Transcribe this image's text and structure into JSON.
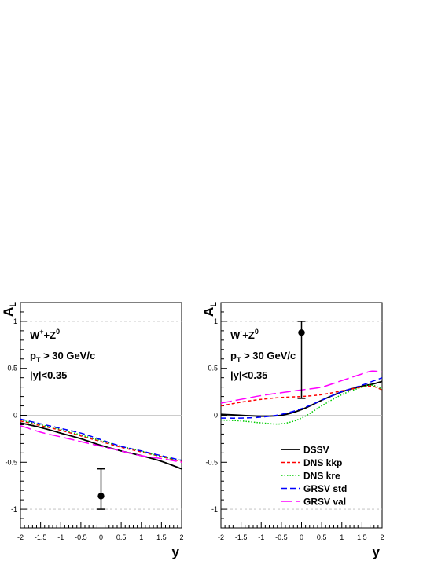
{
  "colors": {
    "DSSV": "#000000",
    "DNS kkp": "#ff0000",
    "DNS kre": "#00cc00",
    "GRSV std": "#0000ff",
    "GRSV val": "#ff00ff"
  },
  "chart_data": [
    {
      "type": "line",
      "panel": "left",
      "ylabel_main": "A",
      "ylabel_sub": "L",
      "xlabel": "y",
      "xlim": [
        -2,
        2
      ],
      "ylim": [
        -1.2,
        1.2
      ],
      "xticks": [
        "-2",
        "-1.5",
        "-1",
        "-0.5",
        "0",
        "0.5",
        "1",
        "1.5",
        "2"
      ],
      "yticks": [
        "-1",
        "-0.5",
        "0",
        "0.5",
        "1"
      ],
      "grid": "dashed horizontal at ±1",
      "annotations": {
        "line1_main": "W",
        "line1_sup1": "+",
        "line1_mid": "+Z",
        "line1_sup2": "0",
        "line2_main": "p",
        "line2_sub": "T",
        "line2_rest": " > 30 GeV/c",
        "line3": "|y|<0.35"
      },
      "x": [
        -2,
        -1.5,
        -1,
        -0.5,
        0,
        0.5,
        1,
        1.5,
        2
      ],
      "series": [
        {
          "name": "DSSV",
          "y": [
            -0.08,
            -0.13,
            -0.19,
            -0.25,
            -0.32,
            -0.38,
            -0.43,
            -0.49,
            -0.57
          ]
        },
        {
          "name": "DNS kkp",
          "y": [
            -0.06,
            -0.11,
            -0.16,
            -0.22,
            -0.28,
            -0.34,
            -0.39,
            -0.44,
            -0.49
          ]
        },
        {
          "name": "DNS kre",
          "y": [
            -0.05,
            -0.1,
            -0.15,
            -0.21,
            -0.27,
            -0.33,
            -0.38,
            -0.44,
            -0.48
          ]
        },
        {
          "name": "GRSV std",
          "y": [
            -0.04,
            -0.09,
            -0.14,
            -0.19,
            -0.26,
            -0.33,
            -0.38,
            -0.43,
            -0.48
          ]
        },
        {
          "name": "GRSV val",
          "y": [
            -0.11,
            -0.18,
            -0.23,
            -0.28,
            -0.33,
            -0.38,
            -0.43,
            -0.46,
            -0.5
          ]
        }
      ],
      "data_point": {
        "x": 0,
        "y": -0.86,
        "y_low": -1.0,
        "y_high": -0.57
      }
    },
    {
      "type": "line",
      "panel": "right",
      "ylabel_main": "A",
      "ylabel_sub": "L",
      "xlabel": "y",
      "xlim": [
        -2,
        2
      ],
      "ylim": [
        -1.2,
        1.2
      ],
      "xticks": [
        "-2",
        "-1.5",
        "-1",
        "-0.5",
        "0",
        "0.5",
        "1",
        "1.5",
        "2"
      ],
      "yticks": [
        "-1",
        "-0.5",
        "0",
        "0.5",
        "1"
      ],
      "grid": "dashed horizontal at ±1",
      "annotations": {
        "line1_main": "W",
        "line1_sup1": "-",
        "line1_mid": "+Z",
        "line1_sup2": "0",
        "line2_main": "p",
        "line2_sub": "T",
        "line2_rest": " > 30 GeV/c",
        "line3": "|y|<0.35"
      },
      "legend": [
        "DSSV",
        "DNS kkp",
        "DNS kre",
        "GRSV std",
        "GRSV val"
      ],
      "legend_position": "bottom-right",
      "x": [
        -2,
        -1.5,
        -1,
        -0.5,
        0,
        0.5,
        1,
        1.5,
        1.75,
        2
      ],
      "series": [
        {
          "name": "DSSV",
          "y": [
            0.01,
            0.0,
            -0.01,
            0.0,
            0.06,
            0.16,
            0.25,
            0.31,
            0.33,
            0.36
          ]
        },
        {
          "name": "DNS kkp",
          "y": [
            0.1,
            0.14,
            0.17,
            0.19,
            0.2,
            0.22,
            0.26,
            0.3,
            0.31,
            0.27
          ]
        },
        {
          "name": "DNS kre",
          "y": [
            -0.05,
            -0.06,
            -0.08,
            -0.09,
            -0.03,
            0.1,
            0.22,
            0.3,
            0.32,
            0.28
          ]
        },
        {
          "name": "GRSV std",
          "y": [
            -0.03,
            -0.03,
            -0.02,
            0.01,
            0.07,
            0.16,
            0.25,
            0.32,
            0.36,
            0.4
          ]
        },
        {
          "name": "GRSV val",
          "y": [
            0.13,
            0.17,
            0.21,
            0.24,
            0.27,
            0.3,
            0.37,
            0.44,
            0.47,
            0.46
          ]
        }
      ],
      "data_point": {
        "x": 0,
        "y": 0.88,
        "y_low": 0.18,
        "y_high": 1.0
      }
    }
  ]
}
